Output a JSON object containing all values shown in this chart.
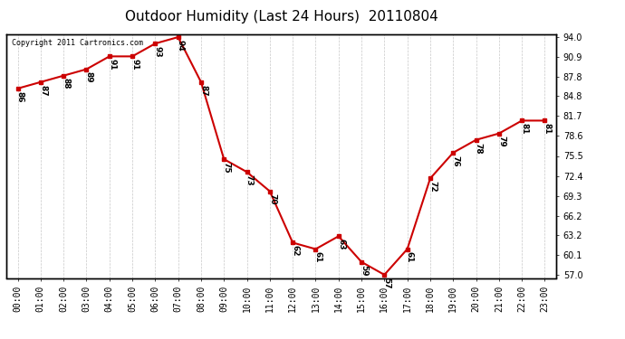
{
  "title": "Outdoor Humidity (Last 24 Hours)  20110804",
  "copyright_text": "Copyright 2011 Cartronics.com",
  "hours": [
    0,
    1,
    2,
    3,
    4,
    5,
    6,
    7,
    8,
    9,
    10,
    11,
    12,
    13,
    14,
    15,
    16,
    17,
    18,
    19,
    20,
    21,
    22,
    23
  ],
  "values": [
    86,
    87,
    88,
    89,
    91,
    91,
    93,
    94,
    87,
    75,
    73,
    70,
    62,
    61,
    63,
    59,
    57,
    61,
    72,
    76,
    78,
    79,
    81,
    81
  ],
  "xlabels": [
    "00:00",
    "01:00",
    "02:00",
    "03:00",
    "04:00",
    "05:00",
    "06:00",
    "07:00",
    "08:00",
    "09:00",
    "10:00",
    "11:00",
    "12:00",
    "13:00",
    "14:00",
    "15:00",
    "16:00",
    "17:00",
    "18:00",
    "19:00",
    "20:00",
    "21:00",
    "22:00",
    "23:00"
  ],
  "yticks": [
    57.0,
    60.1,
    63.2,
    66.2,
    69.3,
    72.4,
    75.5,
    78.6,
    81.7,
    84.8,
    87.8,
    90.9,
    94.0
  ],
  "ylim": [
    56.5,
    94.5
  ],
  "line_color": "#cc0000",
  "marker_color": "#cc0000",
  "bg_color": "#ffffff",
  "plot_bg_color": "#ffffff",
  "grid_color": "#c8c8c8",
  "title_fontsize": 11,
  "label_fontsize": 7,
  "annot_fontsize": 6.5,
  "copyright_fontsize": 6
}
